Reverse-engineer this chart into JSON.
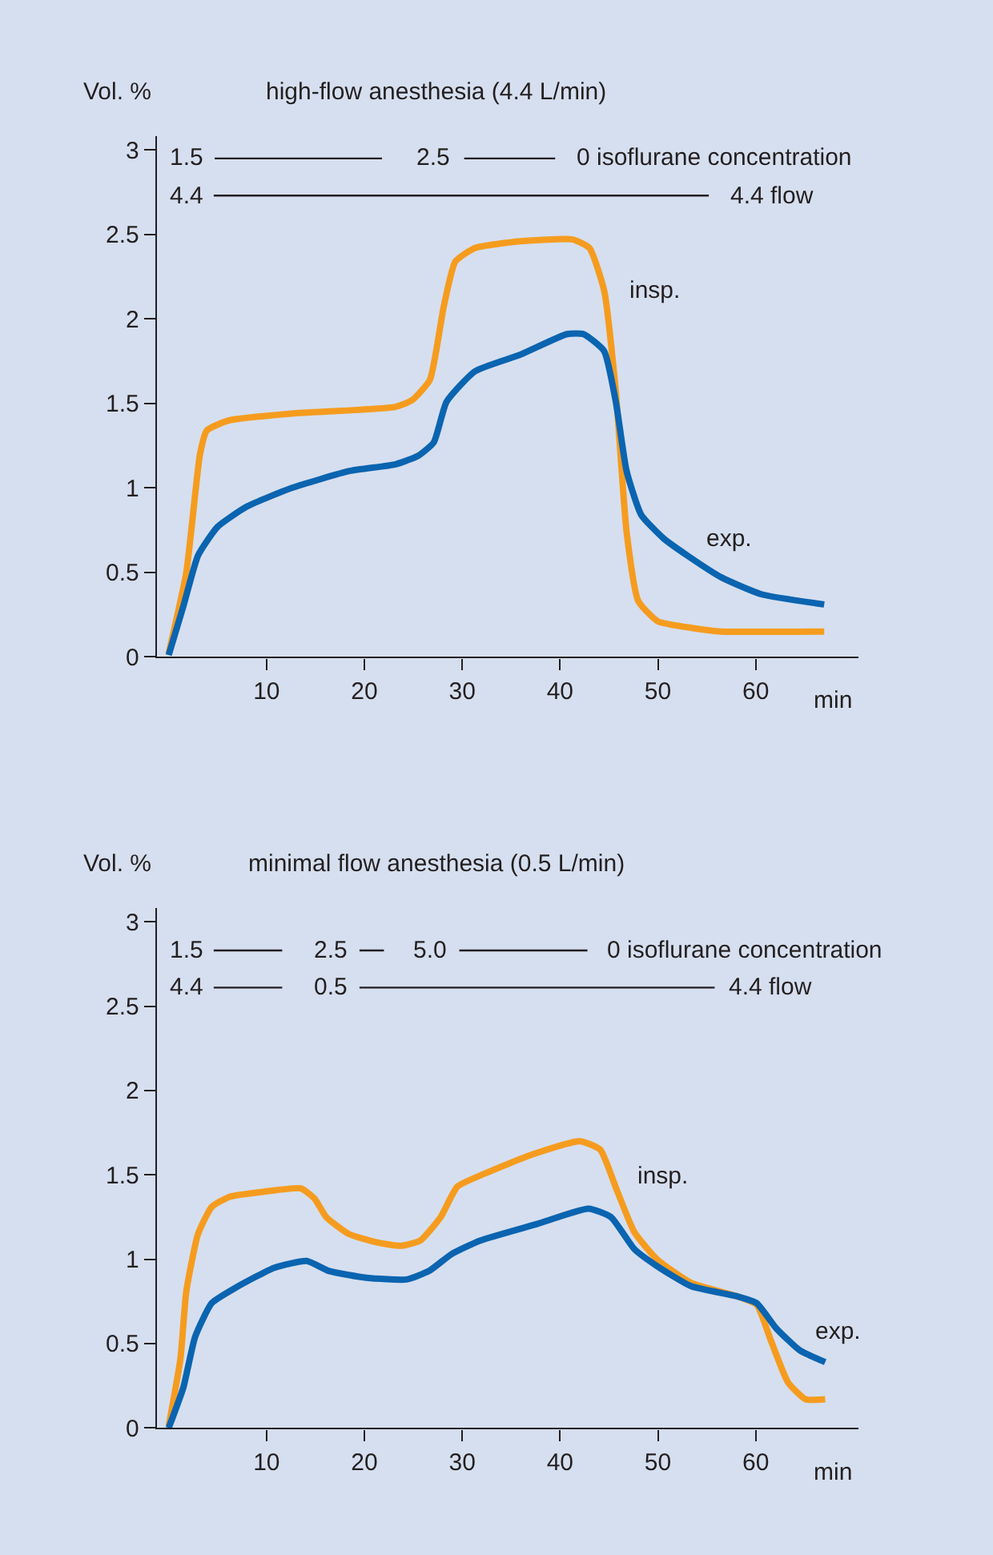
{
  "chart_data": [
    {
      "type": "line",
      "title": "high-flow anesthesia (4.4 L/min)",
      "xlabel": "min",
      "ylabel": "Vol. %",
      "xlim": [
        -1.2,
        70.5
      ],
      "ylim": [
        0,
        3.08
      ],
      "xticks": [
        10,
        20,
        30,
        40,
        50,
        60
      ],
      "yticks": [
        0,
        0.5,
        1,
        1.5,
        2,
        2.5,
        3
      ],
      "grid": false,
      "line_style": "solid",
      "marker": "none",
      "series": [
        {
          "color": "#f59c1f",
          "x": [
            0,
            1.8,
            3.2,
            3.9,
            6.2,
            12.6,
            23.2,
            24.9,
            26.7,
            28.1,
            29.3,
            31.3,
            36,
            41.3,
            43,
            44.5,
            45.7,
            46.8,
            48,
            50,
            53.6,
            56.5,
            67
          ],
          "values": [
            0.02,
            0.5,
            1.2,
            1.34,
            1.4,
            1.44,
            1.48,
            1.52,
            1.64,
            2.07,
            2.34,
            2.42,
            2.46,
            2.47,
            2.42,
            2.17,
            1.57,
            0.74,
            0.33,
            0.21,
            0.17,
            0.15,
            0.15
          ]
        },
        {
          "color": "#0a64b0",
          "x": [
            0,
            1.5,
            3,
            5,
            8,
            12.6,
            18.5,
            23.2,
            25.5,
            27.1,
            28.4,
            31.3,
            36,
            40.7,
            42.4,
            44.5,
            45.7,
            46.8,
            48.3,
            50.6,
            53,
            56.5,
            60.6,
            67
          ],
          "values": [
            0.01,
            0.3,
            0.6,
            0.77,
            0.89,
            1.0,
            1.1,
            1.14,
            1.19,
            1.27,
            1.51,
            1.69,
            1.79,
            1.91,
            1.91,
            1.81,
            1.51,
            1.1,
            0.84,
            0.7,
            0.6,
            0.47,
            0.37,
            0.31
          ]
        },
        {
          "color": "#231f20",
          "x": [
            4.7,
            21.8
          ],
          "values": [
            2.95,
            2.95
          ]
        },
        {
          "color": "#231f20",
          "x": [
            30.2,
            39.5
          ],
          "values": [
            2.95,
            2.95
          ]
        },
        {
          "color": "#231f20",
          "x": [
            4.6,
            55.2
          ],
          "values": [
            2.73,
            2.73
          ]
        }
      ],
      "annotations": [
        "1.5",
        "2.5",
        "0 isoflurane concentration",
        "4.4",
        "4.4 flow",
        "insp.",
        "exp."
      ]
    },
    {
      "type": "line",
      "title": "minimal flow anesthesia (0.5 L/min)",
      "xlabel": "min",
      "ylabel": "Vol. %",
      "xlim": [
        -1.2,
        70.5
      ],
      "ylim": [
        0,
        3.08
      ],
      "xticks": [
        10,
        20,
        30,
        40,
        50,
        60
      ],
      "yticks": [
        0,
        0.5,
        1,
        1.5,
        2,
        2.5,
        3
      ],
      "grid": false,
      "line_style": "solid",
      "marker": "none",
      "series": [
        {
          "color": "#f59c1f",
          "x": [
            0,
            1.2,
            1.8,
            3,
            4.4,
            6.2,
            9.7,
            13.5,
            14.9,
            16.1,
            18.4,
            21.3,
            23.7,
            25.7,
            27.8,
            29.5,
            32.4,
            37.1,
            42,
            44.1,
            45.8,
            47.6,
            49.9,
            53.4,
            58.1,
            60.1,
            61.6,
            63.3,
            65.1,
            67.1
          ],
          "values": [
            0.01,
            0.41,
            0.81,
            1.15,
            1.31,
            1.37,
            1.4,
            1.42,
            1.36,
            1.25,
            1.15,
            1.1,
            1.08,
            1.11,
            1.25,
            1.43,
            1.51,
            1.62,
            1.7,
            1.65,
            1.41,
            1.16,
            1.0,
            0.86,
            0.78,
            0.73,
            0.51,
            0.27,
            0.17,
            0.17
          ]
        },
        {
          "color": "#0a64b0",
          "x": [
            0,
            1.5,
            2.7,
            4.4,
            6.8,
            10.8,
            14.1,
            16.4,
            20.2,
            24.3,
            26.6,
            28.9,
            31.8,
            37.7,
            42.9,
            45.2,
            47.6,
            49.9,
            53.4,
            58.1,
            60.1,
            62.1,
            64.5,
            67.1
          ],
          "values": [
            0,
            0.24,
            0.54,
            0.74,
            0.83,
            0.95,
            0.99,
            0.93,
            0.89,
            0.88,
            0.93,
            1.03,
            1.11,
            1.21,
            1.3,
            1.25,
            1.06,
            0.96,
            0.84,
            0.78,
            0.74,
            0.59,
            0.46,
            0.39
          ]
        },
        {
          "color": "#231f20",
          "x": [
            4.6,
            11.6
          ],
          "values": [
            2.83,
            2.83
          ]
        },
        {
          "color": "#231f20",
          "x": [
            19.5,
            22
          ],
          "values": [
            2.83,
            2.83
          ]
        },
        {
          "color": "#231f20",
          "x": [
            29.7,
            42.8
          ],
          "values": [
            2.83,
            2.83
          ]
        },
        {
          "color": "#231f20",
          "x": [
            4.6,
            11.6
          ],
          "values": [
            2.61,
            2.61
          ]
        },
        {
          "color": "#231f20",
          "x": [
            19.5,
            55.8
          ],
          "values": [
            2.61,
            2.61
          ]
        }
      ],
      "annotations": [
        "1.5",
        "2.5",
        "5.0",
        "0 isoflurane concentration",
        "4.4",
        "0.5",
        "4.4 flow",
        "insp.",
        "exp."
      ]
    }
  ]
}
